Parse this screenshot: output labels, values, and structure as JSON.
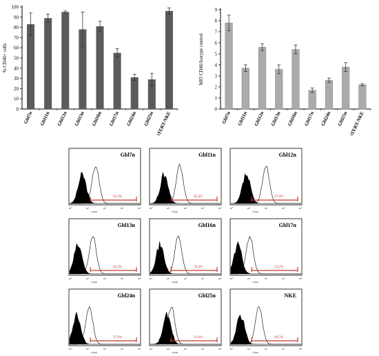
{
  "chart_data": [
    {
      "type": "bar",
      "categories": [
        "Gbl7n",
        "Gbl11n",
        "Gbl12n",
        "Gbl13n",
        "Gbl16n",
        "Gbl17n",
        "Gbl24n",
        "Gbl25n",
        "hTERT-NKE"
      ],
      "values": [
        83,
        89,
        95,
        78,
        81,
        55,
        31,
        29,
        96
      ],
      "errors": [
        11,
        4,
        1,
        17,
        5,
        4,
        3,
        6,
        3
      ],
      "ylabel": "% CD46+ cells",
      "ylim": [
        0,
        100
      ],
      "yticks": [
        0,
        10,
        20,
        30,
        40,
        50,
        60,
        70,
        80,
        90,
        100
      ],
      "bar_color": "#5b5b5b",
      "grid": false
    },
    {
      "type": "bar",
      "categories": [
        "Gbl7n",
        "Gbl11n",
        "Gbl12n",
        "Gbl13n",
        "Gbl16n",
        "Gbl17n",
        "Gbl24n",
        "Gbl25n",
        "hTERT-NKE"
      ],
      "values": [
        7.8,
        3.7,
        5.6,
        3.6,
        5.4,
        1.7,
        2.6,
        3.8,
        2.2
      ],
      "errors": [
        0.7,
        0.3,
        0.3,
        0.4,
        0.4,
        0.2,
        0.2,
        0.4,
        0.1
      ],
      "ylabel": "MFI CD46/Isotype control",
      "ylim": [
        0,
        9
      ],
      "yticks": [
        0,
        1,
        2,
        3,
        4,
        5,
        6,
        7,
        8,
        9
      ],
      "bar_color": "#ababab",
      "grid": false
    },
    {
      "type": "histogram-overlay",
      "xlabel": "CD46",
      "x_tick_labels": [
        "10⁰",
        "10¹",
        "10²",
        "10³",
        "10⁴"
      ],
      "gate_color": "#c0392b",
      "panels": [
        {
          "title": "Gbl7n",
          "percent": "83,4%",
          "iso_peak": 0.18,
          "cd46_peak": 0.37
        },
        {
          "title": "Gbl11n",
          "percent": "85,4%",
          "iso_peak": 0.2,
          "cd46_peak": 0.42
        },
        {
          "title": "Gbl12n",
          "percent": "97,9%",
          "iso_peak": 0.22,
          "cd46_peak": 0.5
        },
        {
          "title": "Gbl13n",
          "percent": "82,3%",
          "iso_peak": 0.12,
          "cd46_peak": 0.33
        },
        {
          "title": "Gbl16n",
          "percent": "78,4%",
          "iso_peak": 0.14,
          "cd46_peak": 0.4
        },
        {
          "title": "Gbl17n",
          "percent": "53,2%",
          "iso_peak": 0.1,
          "cd46_peak": 0.27
        },
        {
          "title": "Gbl24n",
          "percent": "37,9%",
          "iso_peak": 0.1,
          "cd46_peak": 0.28
        },
        {
          "title": "Gbl25n",
          "percent": "31,6%",
          "iso_peak": 0.24,
          "cd46_peak": 0.3
        },
        {
          "title": "NKE",
          "percent": "99,5%",
          "iso_peak": 0.14,
          "cd46_peak": 0.4
        }
      ]
    }
  ]
}
